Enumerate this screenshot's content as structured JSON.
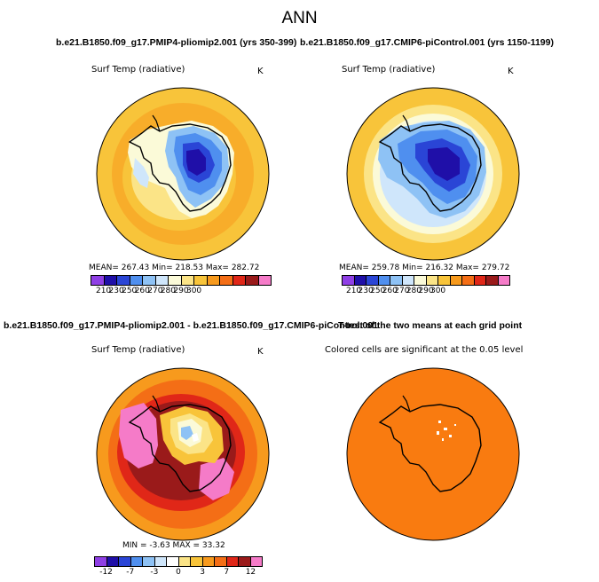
{
  "title": "ANN",
  "top_left": {
    "case_title": "b.e21.B1850.f09_g17.PMIP4-pliomip2.001 (yrs 350-399)",
    "variable": "Surf Temp (radiative)",
    "units": "K",
    "stats": "MEAN= 267.43   Min= 218.53   Max= 282.72",
    "colorbar_ticks": [
      "210",
      "230",
      "250",
      "260",
      "270",
      "280",
      "290",
      "300"
    ]
  },
  "top_right": {
    "case_title": "b.e21.B1850.f09_g17.CMIP6-piControl.001 (yrs 1150-1199)",
    "variable": "Surf Temp (radiative)",
    "units": "K",
    "stats": "MEAN= 259.78   Min= 216.32   Max= 279.72",
    "colorbar_ticks": [
      "210",
      "230",
      "250",
      "260",
      "270",
      "280",
      "290",
      "300"
    ]
  },
  "bottom_left": {
    "case_title": "b.e21.B1850.f09_g17.PMIP4-pliomip2.001 - b.e21.B1850.f09_g17.CMIP6-piControl.001",
    "variable": "Surf Temp (radiative)",
    "units": "K",
    "stats": "MIN =   -3.63  MAX =  33.32",
    "colorbar_ticks": [
      "-12",
      "-7",
      "-3",
      "0",
      "3",
      "7",
      "12"
    ]
  },
  "bottom_right": {
    "case_title": "T-test of the two means at each grid point",
    "note": "Colored cells are significant at the 0.05 level"
  },
  "colors": {
    "abs_colorbar": [
      "#8f3fe5",
      "#1f0fa8",
      "#2a45d6",
      "#4f8fef",
      "#8ec2f5",
      "#cfe6fb",
      "#fbfad8",
      "#fbe487",
      "#f8c43a",
      "#f79a1d",
      "#f46e16",
      "#e02718",
      "#9a1a1a",
      "#f57bc8"
    ],
    "diff_colorbar": [
      "#8f3fe5",
      "#1f0fa8",
      "#2a45d6",
      "#4f8fef",
      "#8ec2f5",
      "#cfe6fb",
      "#ffffff",
      "#fbe487",
      "#f8c43a",
      "#f79a1d",
      "#f46e16",
      "#e02718",
      "#9a1a1a",
      "#f57bc8"
    ],
    "ttest_fill": "#f97b10"
  }
}
